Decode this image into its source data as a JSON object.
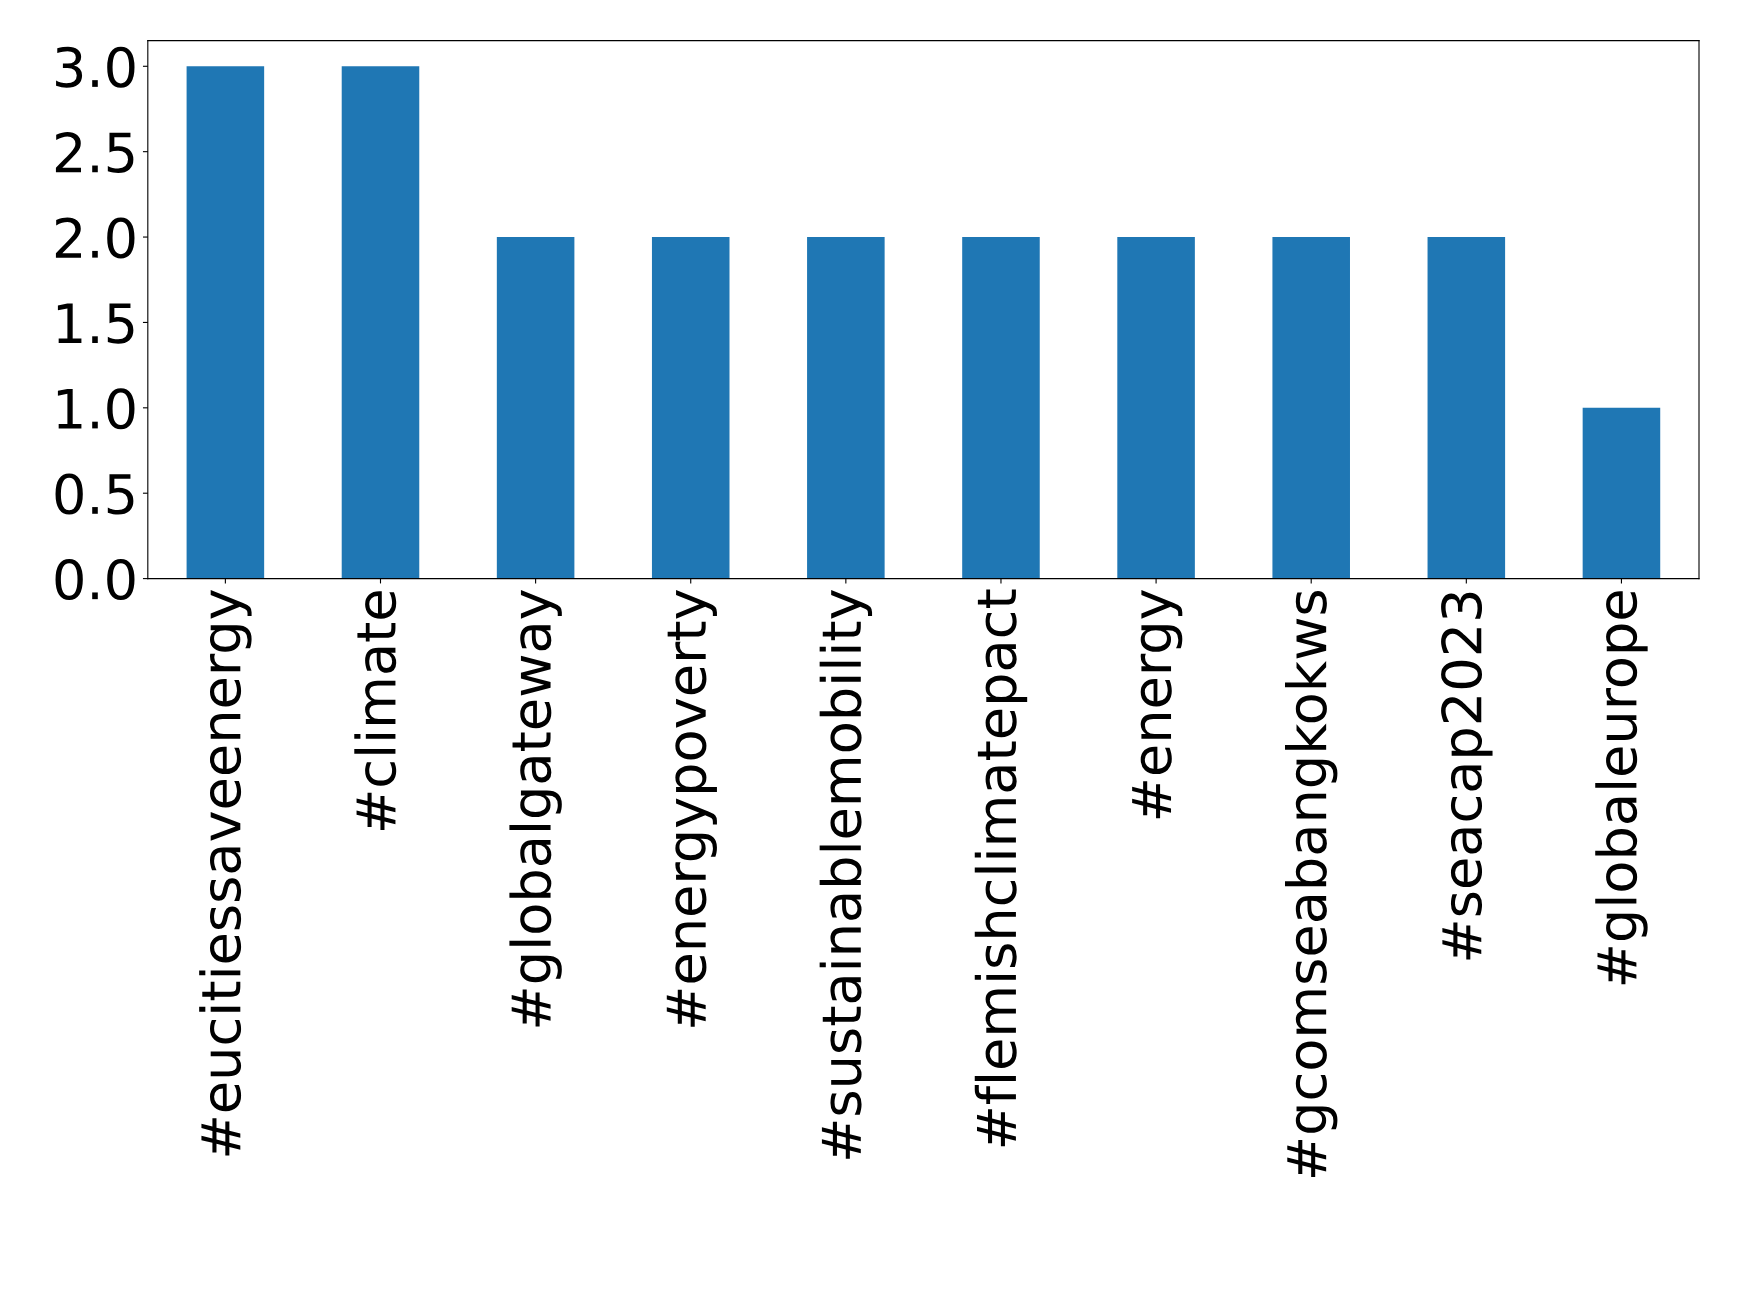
{
  "chart_data": {
    "type": "bar",
    "categories": [
      "#eucitiessaveenergy",
      "#climate",
      "#globalgateway",
      "#energypoverty",
      "#sustainablemobility",
      "#flemishclimatepact",
      "#energy",
      "#gcomseabangkokws",
      "#seacap2023",
      "#globaleurope"
    ],
    "values": [
      3,
      3,
      2,
      2,
      2,
      2,
      2,
      2,
      2,
      1
    ],
    "color": "#1f77b4",
    "ylim": [
      0,
      3.15
    ],
    "yticks": [
      {
        "value": 0,
        "label": "0.0"
      },
      {
        "value": 0.5,
        "label": "0.5"
      },
      {
        "value": 1,
        "label": "1.0"
      },
      {
        "value": 1.5,
        "label": "1.5"
      },
      {
        "value": 2,
        "label": "2.0"
      },
      {
        "value": 2.5,
        "label": "2.5"
      },
      {
        "value": 3,
        "label": "3.0"
      }
    ],
    "grid": false,
    "legend": false
  }
}
